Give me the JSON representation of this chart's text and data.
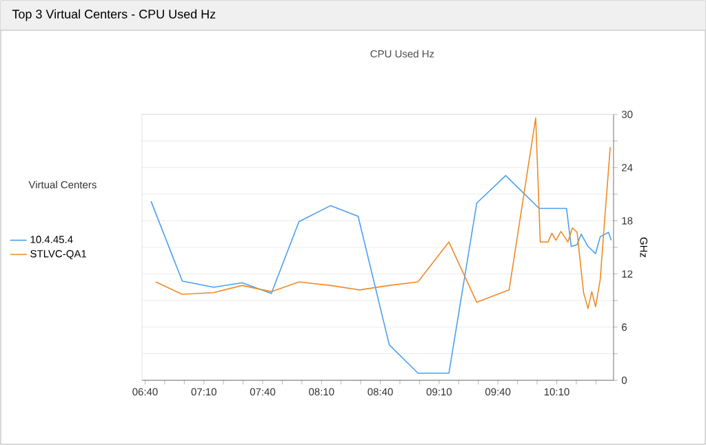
{
  "chart_data": {
    "type": "line",
    "title": "Top 3 Virtual Centers - CPU Used Hz",
    "subtitle": "CPU Used Hz",
    "ylabel": "GHz",
    "legend_title": "Virtual Centers",
    "legend": "left",
    "grid": "y",
    "marker": "none",
    "line_style": "solid",
    "xlim": [
      6.64,
      10.65
    ],
    "ylim": [
      0,
      30
    ],
    "xticks": [
      {
        "value": 6.6667,
        "label": "06:40"
      },
      {
        "value": 6.8333,
        "label": null
      },
      {
        "value": 7.0,
        "label": null
      },
      {
        "value": 7.1667,
        "label": "07:10"
      },
      {
        "value": 7.3333,
        "label": null
      },
      {
        "value": 7.5,
        "label": null
      },
      {
        "value": 7.6667,
        "label": "07:40"
      },
      {
        "value": 7.8333,
        "label": null
      },
      {
        "value": 8.0,
        "label": null
      },
      {
        "value": 8.1667,
        "label": "08:10"
      },
      {
        "value": 8.3333,
        "label": null
      },
      {
        "value": 8.5,
        "label": null
      },
      {
        "value": 8.6667,
        "label": "08:40"
      },
      {
        "value": 8.8333,
        "label": null
      },
      {
        "value": 9.0,
        "label": null
      },
      {
        "value": 9.1667,
        "label": "09:10"
      },
      {
        "value": 9.3333,
        "label": null
      },
      {
        "value": 9.5,
        "label": null
      },
      {
        "value": 9.6667,
        "label": "09:40"
      },
      {
        "value": 9.8333,
        "label": null
      },
      {
        "value": 10.0,
        "label": null
      },
      {
        "value": 10.1667,
        "label": "10:10"
      },
      {
        "value": 10.3333,
        "label": null
      },
      {
        "value": 10.5,
        "label": null
      }
    ],
    "yticks": [
      0,
      {
        "value": 3,
        "label": null
      },
      6,
      {
        "value": 9,
        "label": null
      },
      12,
      {
        "value": 15,
        "label": null
      },
      18,
      {
        "value": 21,
        "label": null
      },
      24,
      {
        "value": 27,
        "label": null
      },
      30
    ],
    "series": [
      {
        "name": "10.4.45.4",
        "color": "#4a9ff0",
        "x": [
          6.717,
          6.983,
          7.25,
          7.492,
          7.74,
          7.975,
          8.243,
          8.478,
          8.743,
          8.987,
          9.25,
          9.487,
          9.733,
          10.017,
          10.25,
          10.29,
          10.34,
          10.375,
          10.433,
          10.497,
          10.537,
          10.607,
          10.63
        ],
        "values": [
          20.2,
          11.2,
          10.5,
          11.0,
          9.8,
          17.9,
          19.7,
          18.5,
          4.0,
          0.8,
          0.8,
          20.0,
          23.1,
          19.4,
          19.4,
          15.1,
          15.3,
          16.5,
          15.1,
          14.3,
          16.2,
          16.7,
          15.8
        ]
      },
      {
        "name": "STLVC-QA1",
        "color": "#f08a24",
        "x": [
          6.757,
          6.983,
          7.25,
          7.492,
          7.74,
          7.975,
          8.243,
          8.49,
          8.743,
          8.987,
          9.25,
          9.487,
          9.762,
          9.988,
          10.027,
          10.093,
          10.125,
          10.16,
          10.203,
          10.262,
          10.3,
          10.34,
          10.395,
          10.433,
          10.465,
          10.497,
          10.537,
          10.575,
          10.622
        ],
        "values": [
          11.1,
          9.7,
          9.9,
          10.7,
          10.0,
          11.1,
          10.7,
          10.2,
          10.7,
          11.1,
          15.6,
          8.8,
          10.2,
          29.6,
          15.6,
          15.6,
          16.6,
          15.8,
          16.8,
          15.6,
          17.2,
          16.7,
          9.9,
          8.1,
          10.0,
          8.3,
          11.4,
          18.2,
          26.3
        ]
      }
    ]
  }
}
